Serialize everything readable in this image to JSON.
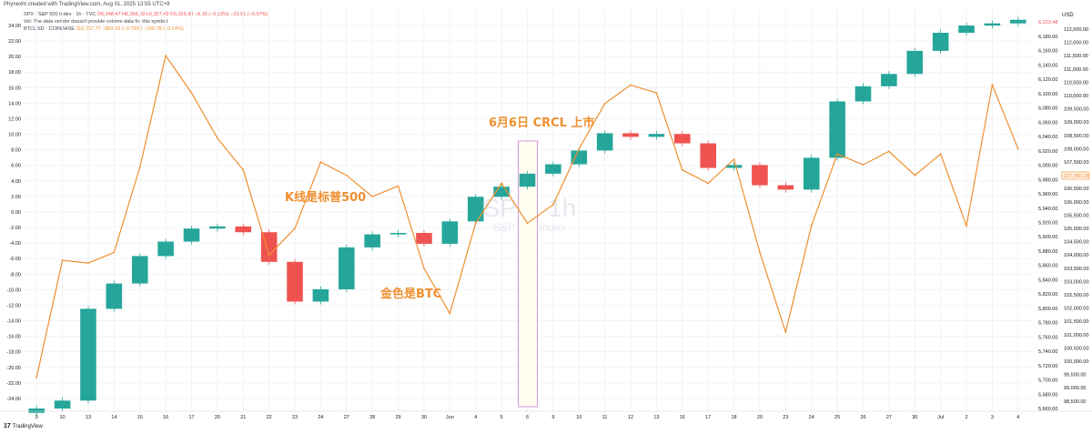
{
  "header": {
    "credit": "Phynexht created with TradingView.com, Aug 01, 2025 13:55 UTC+8",
    "legend_spx_name": "SPX · S&P 500 Index · 1h · TVC",
    "legend_spx_ohlc": "O6,348.47  H6,356.09  L6,327.43  C6,329.38  −8.15 (−0.13%)  −23.51 (−0.37%)",
    "legend_vol": "Vol: The data vendor doesn't provide volume data for this symbol.",
    "legend_btc_name": "BTCUSD · COINBASE",
    "legend_btc_vals": "116,757.77  −883.16 (−0.75%)  −156.78 (−0.14%)"
  },
  "annotations": {
    "crcl": "6月6日 CRCL 上市",
    "kline": "K线是标普500",
    "gold": "金色是BTC"
  },
  "watermark": {
    "symbol": "SPX, 1h",
    "name": "S&P 500 Index"
  },
  "footer": {
    "logo_text": "TradingView",
    "logo_mark": "17"
  },
  "axis": {
    "currency": "USD",
    "left_ticks": [
      "24.00",
      "22.00",
      "20.00",
      "18.00",
      "16.00",
      "14.00",
      "12.00",
      "10.00",
      "8.00",
      "6.00",
      "4.00",
      "2.00",
      "0.00",
      "-2.00",
      "-4.00",
      "-6.00",
      "-8.00",
      "-10.00",
      "-12.00",
      "-14.00",
      "-16.00",
      "-18.00",
      "-20.00",
      "-22.00",
      "-24.00"
    ],
    "spx_ticks": [
      "6,180.00",
      "6,160.00",
      "6,140.00",
      "6,120.00",
      "6,100.00",
      "6,080.00",
      "6,060.00",
      "6,040.00",
      "6,020.00",
      "6,000.00",
      "5,980.00",
      "5,960.00",
      "5,940.00",
      "5,920.00",
      "5,900.00",
      "5,880.00",
      "5,860.00",
      "5,840.00",
      "5,820.00",
      "5,800.00",
      "5,780.00",
      "5,760.00",
      "5,740.00",
      "5,720.00",
      "5,700.00",
      "5,680.00",
      "5,660.00"
    ],
    "btc_ticks": [
      "112,500.00",
      "112,000.00",
      "111,500.00",
      "111,000.00",
      "110,500.00",
      "110,000.00",
      "109,500.00",
      "109,000.00",
      "108,500.00",
      "108,000.00",
      "107,500.00",
      "107,000.00",
      "106,500.00",
      "106,000.00",
      "105,500.00",
      "105,000.00",
      "104,500.00",
      "104,000.00",
      "103,500.00",
      "103,000.00",
      "102,500.00",
      "102,000.00",
      "101,500.00",
      "101,000.00",
      "100,500.00",
      "100,000.00",
      "99,500.00",
      "99,000.00",
      "98,500.00"
    ],
    "x_ticks": [
      "9",
      "10",
      "13",
      "14",
      "15",
      "16",
      "17",
      "20",
      "21",
      "22",
      "23",
      "24",
      "27",
      "28",
      "29",
      "30",
      "Jun",
      "4",
      "5",
      "6",
      "9",
      "10",
      "11",
      "12",
      "13",
      "16",
      "17",
      "18",
      "20",
      "23",
      "24",
      "25",
      "26",
      "27",
      "30",
      "Jul",
      "2",
      "3",
      "4"
    ],
    "spx_last": "6,223.48",
    "btc_last": "107,950.18"
  },
  "chart_data": {
    "type": "line",
    "title": "",
    "x": [
      "9",
      "10",
      "13",
      "14",
      "15",
      "16",
      "17",
      "20",
      "21",
      "22",
      "23",
      "24",
      "27",
      "28",
      "29",
      "30",
      "Jun",
      "4",
      "5",
      "6",
      "9",
      "10",
      "11",
      "12",
      "13",
      "16",
      "17",
      "18",
      "20",
      "23",
      "24",
      "25",
      "26",
      "27",
      "30",
      "Jul",
      "2",
      "3",
      "4"
    ],
    "spx_close": [
      5665,
      5676,
      5803,
      5838,
      5876,
      5896,
      5914,
      5917,
      5909,
      5868,
      5813,
      5830,
      5888,
      5906,
      5908,
      5893,
      5924,
      5958,
      5972,
      5990,
      6003,
      6022,
      6046,
      6041,
      6045,
      6032,
      5998,
      6002,
      5974,
      5968,
      6012,
      6090,
      6111,
      6128,
      6160,
      6185,
      6195,
      6198,
      6203
    ],
    "btc_close": [
      99400,
      103800,
      103700,
      104100,
      107300,
      111500,
      110100,
      108400,
      107200,
      104000,
      105000,
      107500,
      107000,
      106200,
      106600,
      103500,
      101800,
      105200,
      106700,
      105200,
      105900,
      108000,
      109700,
      110400,
      110100,
      107200,
      106700,
      107600,
      104100,
      101100,
      105100,
      107800,
      107400,
      107900,
      107000,
      107800,
      105100,
      110400,
      108000
    ],
    "series": [
      {
        "name": "SPX · S&P 500 Index · 1h · TVC",
        "kind": "candles",
        "color_up": "#26a69a",
        "color_down": "#ef5350"
      },
      {
        "name": "BTCUSD · COINBASE",
        "kind": "line",
        "color": "#ef8f2f"
      }
    ],
    "highlight_category": "6"
  }
}
